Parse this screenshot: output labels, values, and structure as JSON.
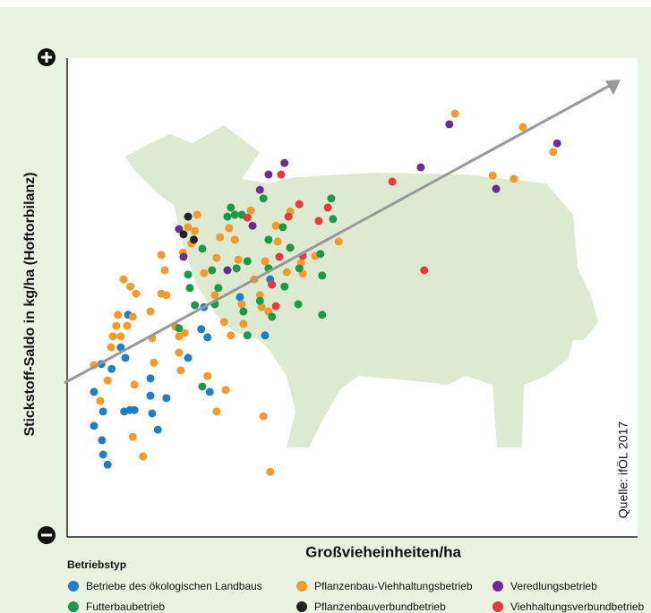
{
  "chart_data": {
    "type": "scatter",
    "y_label": "Stickstoff-Saldo in kg/ha (Hoftorbilanz)",
    "x_label": "Großvieheinheiten/ha",
    "source": "Quelle: ifÖL 2017",
    "legend_title": "Betriebstyp",
    "xlim": [
      0,
      100
    ],
    "ylim": [
      0,
      100
    ],
    "series": [
      {
        "name": "Betriebe des ökologischen Landbaus",
        "color": "#1f7fc4",
        "x": [
          4.7,
          6.3,
          4.7,
          6.1,
          6.3,
          7.1,
          10.0,
          11.0,
          11.8,
          14.6,
          14.9,
          15.9,
          17.4,
          14.6,
          6.0,
          7.8,
          10.2,
          10.7,
          9.4,
          21.2,
          23.5,
          24.6,
          24.0,
          25.0,
          30.3,
          34.7,
          35.6
        ],
        "values": [
          30.3,
          26.2,
          23.2,
          20.2,
          17.2,
          15.1,
          26.2,
          26.5,
          26.5,
          29.5,
          25.8,
          22.4,
          29.0,
          33.1,
          36.1,
          35.1,
          37.4,
          46.4,
          39.6,
          37.4,
          43.4,
          41.7,
          48.0,
          30.3,
          50.1,
          42.1,
          53.8
        ]
      },
      {
        "name": "Pflanzenbau-Viehhaltungsbetrieb",
        "color": "#f39a2a",
        "x": [
          4.7,
          5.8,
          7.1,
          7.7,
          8.0,
          8.6,
          8.9,
          9.4,
          9.9,
          10.5,
          11.1,
          11.5,
          11.8,
          12.1,
          11.5,
          13.3,
          14.6,
          14.9,
          15.2,
          16.5,
          16.5,
          17.4,
          17.1,
          19.0,
          19.6,
          19.9,
          19.6,
          20.6,
          20.3,
          21.2,
          21.8,
          22.4,
          22.8,
          24.0,
          24.6,
          25.9,
          26.2,
          26.8,
          27.5,
          26.2,
          27.8,
          28.4,
          28.7,
          29.4,
          30.0,
          30.6,
          30.9,
          32.2,
          32.8,
          33.8,
          34.1,
          34.4,
          34.7,
          35.6,
          35.3,
          36.6,
          36.9,
          38.5,
          39.1,
          41.0,
          41.3,
          43.5,
          47.6,
          68.0,
          79.9,
          74.6,
          78.3,
          85.2
        ],
        "values": [
          35.9,
          28.4,
          32.7,
          39.6,
          41.9,
          44.1,
          46.4,
          41.9,
          53.8,
          44.1,
          52.3,
          46.0,
          31.8,
          50.8,
          20.9,
          16.8,
          47.1,
          41.5,
          36.4,
          58.9,
          50.8,
          50.5,
          55.7,
          43.9,
          41.9,
          34.8,
          38.5,
          42.6,
          59.4,
          64.7,
          61.3,
          63.9,
          67.3,
          55.1,
          33.6,
          50.5,
          58.3,
          62.6,
          44.9,
          26.2,
          30.7,
          64.5,
          42.1,
          62.1,
          57.9,
          48.6,
          44.5,
          68.2,
          53.8,
          50.5,
          48.0,
          25.2,
          57.6,
          13.6,
          47.1,
          65.0,
          61.7,
          55.3,
          68.0,
          57.2,
          55.0,
          58.7,
          61.7,
          88.4,
          85.6,
          75.5,
          74.8,
          80.4
        ]
      },
      {
        "name": "Veredlungsbetrieb",
        "color": "#6b2d90",
        "x": [
          19.6,
          20.4,
          28.1,
          32.5,
          33.8,
          35.3,
          38.1,
          62.0,
          67.0,
          75.2,
          85.9
        ],
        "values": [
          64.3,
          58.5,
          55.7,
          65.0,
          72.5,
          75.7,
          78.1,
          77.2,
          86.2,
          72.7,
          82.2
        ]
      },
      {
        "name": "Futterbaubetrieb",
        "color": "#1a9a48",
        "x": [
          19.6,
          21.2,
          21.5,
          22.4,
          23.7,
          25.4,
          25.9,
          26.5,
          23.7,
          28.1,
          28.7,
          29.4,
          30.6,
          29.7,
          31.6,
          30.9,
          31.6,
          33.8,
          34.4,
          35.3,
          35.3,
          35.9,
          38.1,
          37.8,
          39.1,
          40.7,
          40.5,
          44.7,
          44.4,
          44.7,
          46.3,
          46.6
        ],
        "values": [
          43.6,
          54.8,
          52.0,
          48.4,
          60.2,
          55.7,
          48.6,
          52.0,
          31.4,
          66.9,
          68.8,
          67.3,
          67.3,
          56.1,
          57.6,
          47.1,
          42.1,
          49.3,
          70.7,
          62.1,
          56.1,
          46.0,
          52.3,
          64.7,
          60.4,
          56.1,
          48.6,
          46.4,
          59.1,
          54.6,
          70.7,
          66.4
        ]
      },
      {
        "name": "Pflanzenbauverbundbetrieb",
        "color": "#222222",
        "x": [
          21.2,
          20.4,
          22.2
        ],
        "values": [
          66.9,
          63.2,
          62.1
        ]
      },
      {
        "name": "Viehhaltungsverbundbetrieb",
        "color": "#e83a3a",
        "x": [
          31.6,
          35.9,
          37.2,
          37.5,
          38.8,
          40.7,
          41.3,
          44.1,
          45.7,
          57.0,
          62.6,
          36.6
        ],
        "values": [
          66.7,
          52.7,
          58.5,
          75.7,
          66.9,
          69.5,
          58.7,
          66.0,
          68.8,
          74.2,
          55.7,
          48.2
        ]
      }
    ]
  }
}
